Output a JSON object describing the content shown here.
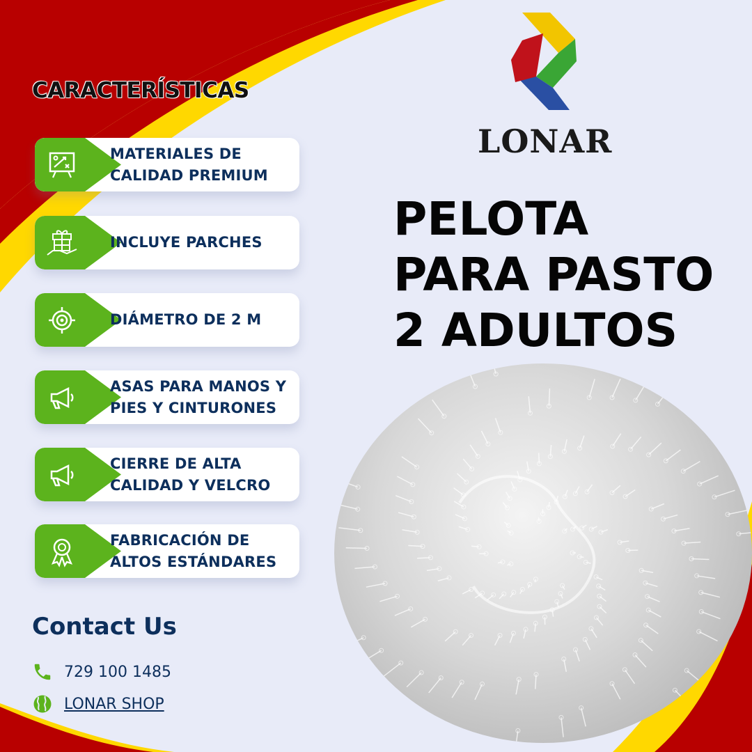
{
  "features_heading": "CARACTERÍSTICAS",
  "features": [
    {
      "icon": "presentation-board-icon",
      "lines": [
        "MATERIALES DE",
        "CALIDAD PREMIUM"
      ]
    },
    {
      "icon": "gift-in-hand-icon",
      "lines": [
        "INCLUYE PARCHES"
      ]
    },
    {
      "icon": "target-icon",
      "lines": [
        "DIÁMETRO DE 2 M"
      ]
    },
    {
      "icon": "megaphone-icon",
      "lines": [
        "ASAS PARA MANOS Y",
        "PIES Y CINTURONES"
      ]
    },
    {
      "icon": "megaphone-icon",
      "lines": [
        "CIERRE DE ALTA",
        "CALIDAD Y VELCRO"
      ]
    },
    {
      "icon": "award-ribbon-icon",
      "lines": [
        "FABRICACIÓN DE",
        "ALTOS ESTÁNDARES"
      ]
    }
  ],
  "brand": {
    "name": "LONAR",
    "logo_colors": [
      "#f2c500",
      "#3aa635",
      "#2a4fa3",
      "#c0121b"
    ]
  },
  "headline": [
    "PELOTA",
    "PARA PASTO",
    "2 ADULTOS"
  ],
  "contact": {
    "title": "Contact Us",
    "phone": "729 100 1485",
    "website_label": "LONAR SHOP"
  },
  "colors": {
    "red": "#b80000",
    "yellow": "#ffd800",
    "green": "#5cb31d",
    "navy": "#0d2f5c",
    "background": "#e8ebf8"
  }
}
